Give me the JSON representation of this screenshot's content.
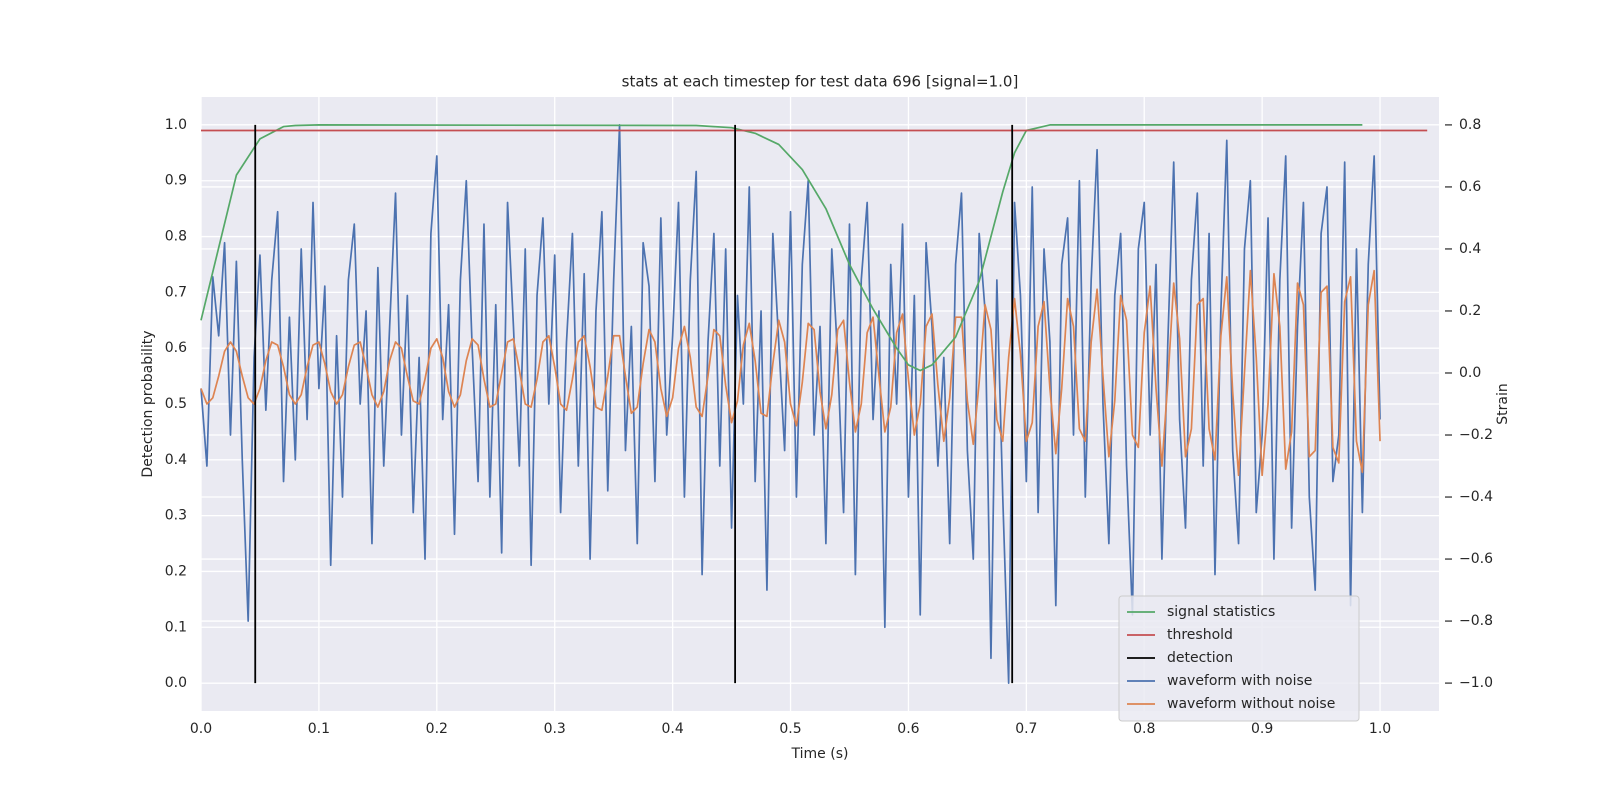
{
  "chart_data": {
    "type": "line",
    "title": "stats at each timestep for test data 696 [signal=1.0]",
    "xlabel": "Time (s)",
    "ylabel": "Detection probability",
    "y2label": "Strain",
    "xlim": [
      0,
      1.05
    ],
    "ylim": [
      -0.05,
      1.05
    ],
    "y2lim": [
      -1.09,
      0.89
    ],
    "xticks": [
      {
        "value": 0,
        "label": "0.0"
      },
      {
        "value": 0.1,
        "label": "0.1"
      },
      {
        "value": 0.2,
        "label": "0.2"
      },
      {
        "value": 0.3,
        "label": "0.3"
      },
      {
        "value": 0.4,
        "label": "0.4"
      },
      {
        "value": 0.5,
        "label": "0.5"
      },
      {
        "value": 0.6,
        "label": "0.6"
      },
      {
        "value": 0.7,
        "label": "0.7"
      },
      {
        "value": 0.8,
        "label": "0.8"
      },
      {
        "value": 0.9,
        "label": "0.9"
      },
      {
        "value": 1,
        "label": "1.0"
      }
    ],
    "yticks": [
      {
        "value": 0,
        "label": "0.0"
      },
      {
        "value": 0.1,
        "label": "0.1"
      },
      {
        "value": 0.2,
        "label": "0.2"
      },
      {
        "value": 0.3,
        "label": "0.3"
      },
      {
        "value": 0.4,
        "label": "0.4"
      },
      {
        "value": 0.5,
        "label": "0.5"
      },
      {
        "value": 0.6,
        "label": "0.6"
      },
      {
        "value": 0.7,
        "label": "0.7"
      },
      {
        "value": 0.8,
        "label": "0.8"
      },
      {
        "value": 0.9,
        "label": "0.9"
      },
      {
        "value": 1,
        "label": "1.0"
      }
    ],
    "y2ticks": [
      {
        "value": -1,
        "label": "−1.0"
      },
      {
        "value": -0.8,
        "label": "−0.8"
      },
      {
        "value": -0.6,
        "label": "−0.6"
      },
      {
        "value": -0.4,
        "label": "−0.4"
      },
      {
        "value": -0.2,
        "label": "−0.2"
      },
      {
        "value": 0,
        "label": "0.0"
      },
      {
        "value": 0.2,
        "label": "0.2"
      },
      {
        "value": 0.4,
        "label": "0.4"
      },
      {
        "value": 0.6,
        "label": "0.6"
      },
      {
        "value": 0.8,
        "label": "0.8"
      }
    ],
    "grid": true,
    "legend": "lower right",
    "x": [
      0,
      0.005,
      0.01,
      0.015,
      0.02,
      0.025,
      0.03,
      0.035,
      0.04,
      0.045,
      0.05,
      0.055,
      0.06,
      0.065,
      0.07,
      0.075,
      0.08,
      0.085,
      0.09,
      0.095,
      0.1,
      0.105,
      0.11,
      0.115,
      0.12,
      0.125,
      0.13,
      0.135,
      0.14,
      0.145,
      0.15,
      0.155,
      0.16,
      0.165,
      0.17,
      0.175,
      0.18,
      0.185,
      0.19,
      0.195,
      0.2,
      0.205,
      0.21,
      0.215,
      0.22,
      0.225,
      0.23,
      0.235,
      0.24,
      0.245,
      0.25,
      0.255,
      0.26,
      0.265,
      0.27,
      0.275,
      0.28,
      0.285,
      0.29,
      0.295,
      0.3,
      0.305,
      0.31,
      0.315,
      0.32,
      0.325,
      0.33,
      0.335,
      0.34,
      0.345,
      0.35,
      0.355,
      0.36,
      0.365,
      0.37,
      0.375,
      0.38,
      0.385,
      0.39,
      0.395,
      0.4,
      0.405,
      0.41,
      0.415,
      0.42,
      0.425,
      0.43,
      0.435,
      0.44,
      0.445,
      0.45,
      0.455,
      0.46,
      0.465,
      0.47,
      0.475,
      0.48,
      0.485,
      0.49,
      0.495,
      0.5,
      0.505,
      0.51,
      0.515,
      0.52,
      0.525,
      0.53,
      0.535,
      0.54,
      0.545,
      0.55,
      0.555,
      0.56,
      0.565,
      0.57,
      0.575,
      0.58,
      0.585,
      0.59,
      0.595,
      0.6,
      0.605,
      0.61,
      0.615,
      0.62,
      0.625,
      0.63,
      0.635,
      0.64,
      0.645,
      0.65,
      0.655,
      0.66,
      0.665,
      0.67,
      0.675,
      0.68,
      0.685,
      0.69,
      0.695,
      0.7,
      0.705,
      0.71,
      0.715,
      0.72,
      0.725,
      0.73,
      0.735,
      0.74,
      0.745,
      0.75,
      0.755,
      0.76,
      0.765,
      0.77,
      0.775,
      0.78,
      0.785,
      0.79,
      0.795,
      0.8,
      0.805,
      0.81,
      0.815,
      0.82,
      0.825,
      0.83,
      0.835,
      0.84,
      0.845,
      0.85,
      0.855,
      0.86,
      0.865,
      0.87,
      0.875,
      0.88,
      0.885,
      0.89,
      0.895,
      0.9,
      0.905,
      0.91,
      0.915,
      0.92,
      0.925,
      0.93,
      0.935,
      0.94,
      0.945,
      0.95,
      0.955,
      0.96,
      0.965,
      0.97,
      0.975,
      0.98,
      0.985,
      0.99,
      0.995,
      1
    ],
    "series": [
      {
        "name": "signal statistics",
        "color": "#55a868",
        "axis": "y",
        "x": [
          0,
          0.03,
          0.05,
          0.07,
          0.08,
          0.1,
          0.42,
          0.45,
          0.47,
          0.49,
          0.51,
          0.53,
          0.55,
          0.57,
          0.59,
          0.6,
          0.61,
          0.62,
          0.64,
          0.66,
          0.68,
          0.69,
          0.7,
          0.72,
          0.985
        ],
        "values": [
          0.65,
          0.91,
          0.975,
          0.997,
          0.999,
          1.0,
          0.999,
          0.995,
          0.985,
          0.965,
          0.92,
          0.85,
          0.75,
          0.67,
          0.6,
          0.57,
          0.56,
          0.57,
          0.62,
          0.72,
          0.88,
          0.95,
          0.99,
          1.0,
          1.0
        ]
      },
      {
        "name": "threshold",
        "color": "#c44e52",
        "axis": "y",
        "x": [
          0,
          1.04
        ],
        "values": [
          0.99,
          0.99
        ]
      },
      {
        "name": "detection",
        "color": "#000000",
        "axis": "y",
        "kind": "vlines",
        "x": [
          0.046,
          0.453,
          0.688
        ],
        "ymin": [
          0,
          0,
          0
        ],
        "ymax": [
          1,
          1,
          1
        ]
      },
      {
        "name": "waveform with noise",
        "color": "#4c72b0",
        "axis": "y2",
        "values": [
          -0.05,
          -0.3,
          0.31,
          0.12,
          0.42,
          -0.2,
          0.36,
          -0.28,
          -0.8,
          0.05,
          0.38,
          -0.12,
          0.3,
          0.52,
          -0.35,
          0.18,
          -0.28,
          0.4,
          -0.15,
          0.55,
          -0.05,
          0.28,
          -0.62,
          0.12,
          -0.4,
          0.3,
          0.48,
          -0.1,
          0.2,
          -0.55,
          0.34,
          -0.3,
          0.15,
          0.58,
          -0.2,
          0.25,
          -0.45,
          0.05,
          -0.6,
          0.45,
          0.7,
          -0.15,
          0.22,
          -0.52,
          0.3,
          0.62,
          0.08,
          -0.35,
          0.48,
          -0.4,
          0.22,
          -0.58,
          0.55,
          0.15,
          -0.3,
          0.4,
          -0.62,
          0.25,
          0.5,
          -0.1,
          0.38,
          -0.45,
          0.1,
          0.45,
          -0.3,
          0.32,
          -0.6,
          0.2,
          0.52,
          -0.38,
          0.3,
          0.8,
          -0.25,
          0.15,
          -0.55,
          0.42,
          0.28,
          -0.35,
          0.5,
          -0.2,
          0.12,
          0.55,
          -0.4,
          0.3,
          0.65,
          -0.65,
          0.1,
          0.45,
          -0.3,
          0.4,
          -0.5,
          0.25,
          -0.1,
          0.6,
          -0.35,
          0.2,
          -0.7,
          0.45,
          0.1,
          -0.25,
          0.52,
          -0.4,
          0.35,
          0.62,
          -0.2,
          0.15,
          -0.55,
          0.4,
          0.05,
          -0.45,
          0.48,
          -0.65,
          0.3,
          0.55,
          -0.15,
          0.2,
          -0.82,
          0.35,
          -0.1,
          0.48,
          -0.4,
          0.25,
          -0.78,
          0.42,
          0.15,
          -0.3,
          0.05,
          -0.55,
          0.35,
          0.58,
          -0.25,
          -0.6,
          0.45,
          0.2,
          -0.92,
          0.3,
          -0.4,
          -1.0,
          0.55,
          0.25,
          -0.35,
          0.6,
          -0.45,
          0.4,
          0.1,
          -0.75,
          0.35,
          0.5,
          -0.2,
          0.62,
          -0.4,
          0.3,
          0.72,
          -0.1,
          -0.55,
          0.25,
          0.45,
          -0.3,
          -0.78,
          0.4,
          0.55,
          -0.2,
          0.35,
          -0.6,
          0.1,
          0.68,
          -0.15,
          -0.5,
          0.3,
          0.58,
          -0.3,
          0.45,
          -0.65,
          0.2,
          0.75,
          -0.25,
          -0.55,
          0.4,
          0.62,
          -0.45,
          -0.2,
          0.5,
          -0.6,
          0.3,
          0.7,
          -0.5,
          0.15,
          0.55,
          -0.4,
          -0.7,
          0.45,
          0.6,
          -0.35,
          -0.2,
          0.68,
          -0.75,
          0.4,
          -0.45,
          0.35,
          0.7,
          -0.15
        ]
      },
      {
        "name": "waveform without noise",
        "color": "#dd8452",
        "axis": "y2",
        "values": [
          -0.05,
          -0.1,
          -0.08,
          -0.01,
          0.07,
          0.1,
          0.07,
          -0.01,
          -0.08,
          -0.1,
          -0.05,
          0.04,
          0.1,
          0.09,
          0.02,
          -0.07,
          -0.1,
          -0.07,
          0.02,
          0.09,
          0.1,
          0.03,
          -0.06,
          -0.1,
          -0.07,
          0.02,
          0.09,
          0.1,
          0.02,
          -0.07,
          -0.11,
          -0.06,
          0.04,
          0.1,
          0.08,
          -0.01,
          -0.09,
          -0.1,
          -0.02,
          0.08,
          0.11,
          0.05,
          -0.06,
          -0.11,
          -0.07,
          0.04,
          0.11,
          0.09,
          -0.02,
          -0.11,
          -0.1,
          0.0,
          0.1,
          0.11,
          0.01,
          -0.1,
          -0.11,
          -0.02,
          0.1,
          0.12,
          0.02,
          -0.1,
          -0.12,
          -0.02,
          0.1,
          0.12,
          0.02,
          -0.11,
          -0.12,
          -0.01,
          0.12,
          0.12,
          -0.01,
          -0.13,
          -0.11,
          0.03,
          0.14,
          0.1,
          -0.05,
          -0.14,
          -0.08,
          0.08,
          0.15,
          0.05,
          -0.11,
          -0.14,
          -0.01,
          0.14,
          0.12,
          -0.04,
          -0.16,
          -0.09,
          0.09,
          0.16,
          0.04,
          -0.13,
          -0.14,
          0.03,
          0.17,
          0.1,
          -0.1,
          -0.17,
          -0.03,
          0.16,
          0.14,
          -0.06,
          -0.18,
          -0.07,
          0.14,
          0.17,
          -0.03,
          -0.19,
          -0.1,
          0.13,
          0.18,
          -0.01,
          -0.19,
          -0.11,
          0.13,
          0.19,
          -0.02,
          -0.2,
          -0.1,
          0.15,
          0.19,
          -0.04,
          -0.22,
          -0.08,
          0.18,
          0.18,
          -0.09,
          -0.23,
          -0.03,
          0.22,
          0.14,
          -0.15,
          -0.22,
          0.05,
          0.24,
          0.06,
          -0.22,
          -0.16,
          0.15,
          0.23,
          -0.05,
          -0.26,
          -0.05,
          0.24,
          0.15,
          -0.18,
          -0.22,
          0.1,
          0.27,
          -0.01,
          -0.27,
          -0.09,
          0.25,
          0.17,
          -0.2,
          -0.24,
          0.13,
          0.28,
          -0.05,
          -0.3,
          -0.03,
          0.29,
          0.11,
          -0.27,
          -0.18,
          0.22,
          0.24,
          -0.18,
          -0.28,
          0.12,
          0.31,
          -0.06,
          -0.33,
          0.0,
          0.33,
          0.05,
          -0.33,
          -0.1,
          0.32,
          0.15,
          -0.31,
          -0.19,
          0.29,
          0.22,
          -0.27,
          -0.25,
          0.26,
          0.28,
          -0.24,
          -0.29,
          0.23,
          0.31,
          -0.22,
          -0.32,
          0.22,
          0.33,
          -0.22
        ]
      }
    ]
  }
}
